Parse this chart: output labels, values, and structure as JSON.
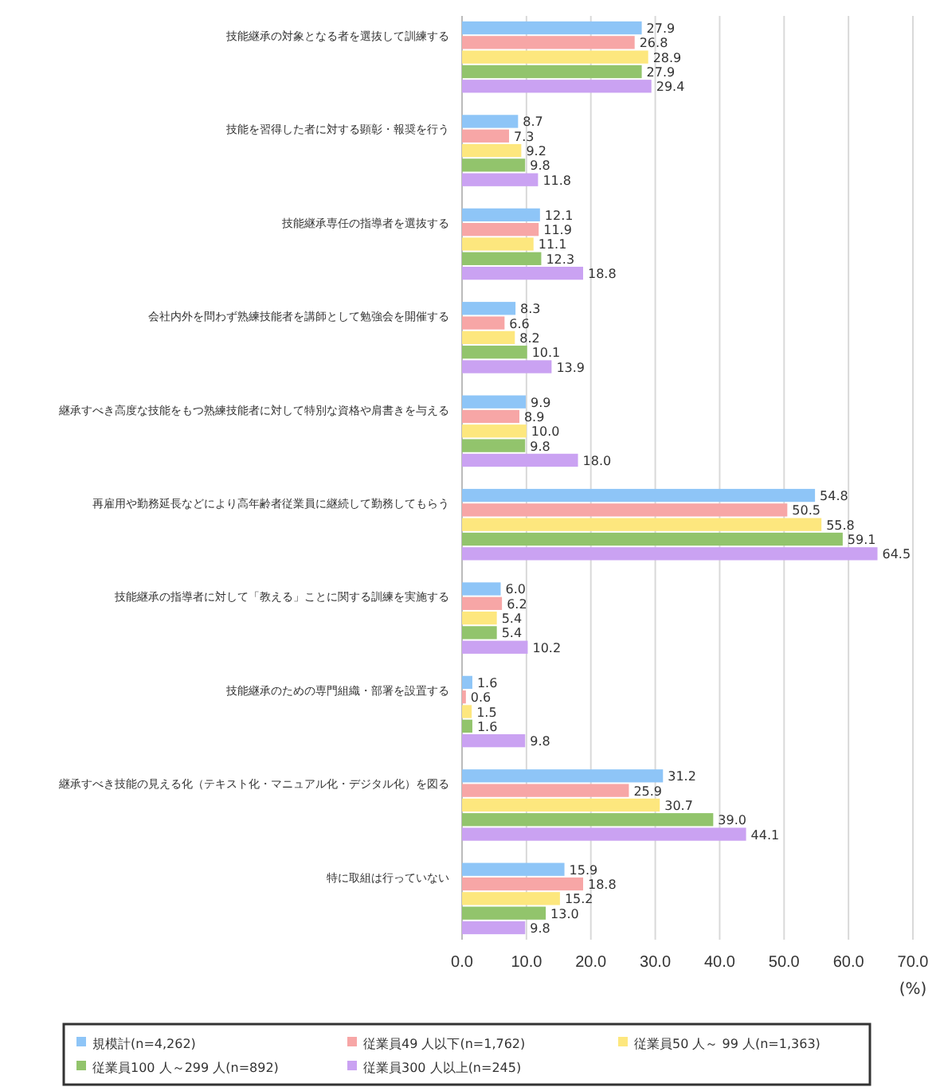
{
  "chart_data": {
    "type": "bar",
    "orientation": "horizontal",
    "categories": [
      "技能継承の対象となる者を選抜して訓練する",
      "技能を習得した者に対する顕彰・報奨を行う",
      "技能継承専任の指導者を選抜する",
      "会社内外を問わず熟練技能者を講師として勉強会を開催する",
      "継承すべき高度な技能をもつ熟練技能者に対して特別な資格や肩書きを与える",
      "再雇用や勤務延長などにより高年齢者従業員に継続して勤務してもらう",
      "技能継承の指導者に対して「教える」ことに関する訓練を実施する",
      "技能継承のための専門組織・部署を設置する",
      "継承すべき技能の見える化（テキスト化・マニュアル化・デジタル化）を図る",
      "特に取組は行っていない"
    ],
    "series": [
      {
        "name": "規模計(n=4,262)",
        "color": "#8ec5f7",
        "values": [
          27.9,
          8.7,
          12.1,
          8.3,
          9.9,
          54.8,
          6.0,
          1.6,
          31.2,
          15.9
        ],
        "value_labels": [
          "27.9",
          "8.7",
          "12.1",
          "8.3",
          "9.9",
          "54.8",
          "6.0",
          "1.6",
          "31.2",
          "15.9"
        ]
      },
      {
        "name": "従業員49 人以下(n=1,762)",
        "color": "#f7a6a6",
        "values": [
          26.8,
          7.3,
          11.9,
          6.6,
          8.9,
          50.5,
          6.2,
          0.6,
          25.9,
          18.8
        ],
        "value_labels": [
          "26.8",
          "7.3",
          "11.9",
          "6.6",
          "8.9",
          "50.5",
          "6.2",
          "0.6",
          "25.9",
          "18.8"
        ]
      },
      {
        "name": "従業員50 人～ 99 人(n=1,363)",
        "color": "#fde77e",
        "values": [
          28.9,
          9.2,
          11.1,
          8.2,
          10.0,
          55.8,
          5.4,
          1.5,
          30.7,
          15.2
        ],
        "value_labels": [
          "28.9",
          "9.2",
          "11.1",
          "8.2",
          "10.0",
          "55.8",
          "5.4",
          "1.5",
          "30.7",
          "15.2"
        ]
      },
      {
        "name": "従業員100 人～299 人(n=892)",
        "color": "#92c46c",
        "values": [
          27.9,
          9.8,
          12.3,
          10.1,
          9.8,
          59.1,
          5.4,
          1.6,
          39.0,
          13.0
        ],
        "value_labels": [
          "27.9",
          "9.8",
          "12.3",
          "10.1",
          "9.8",
          "59.1",
          "5.4",
          "1.6",
          "39.0",
          "13.0"
        ]
      },
      {
        "name": "従業員300 人以上(n=245)",
        "color": "#caa2f2",
        "values": [
          29.4,
          11.8,
          18.8,
          13.9,
          18.0,
          64.5,
          10.2,
          9.8,
          44.1,
          9.8
        ],
        "value_labels": [
          "29.4",
          "11.8",
          "18.8",
          "13.9",
          "18.0",
          "64.5",
          "10.2",
          "9.8",
          "44.1",
          "9.8"
        ]
      }
    ],
    "xlabel": "(%)",
    "xlim": [
      0,
      70
    ],
    "xticks": [
      {
        "value": 0,
        "label": "0.0"
      },
      {
        "value": 10,
        "label": "10.0"
      },
      {
        "value": 20,
        "label": "20.0"
      },
      {
        "value": 30,
        "label": "30.0"
      },
      {
        "value": 40,
        "label": "40.0"
      },
      {
        "value": 50,
        "label": "50.0"
      },
      {
        "value": 60,
        "label": "60.0"
      },
      {
        "value": 70,
        "label": "70.0"
      }
    ],
    "grid": "x",
    "legend": "bottom"
  }
}
